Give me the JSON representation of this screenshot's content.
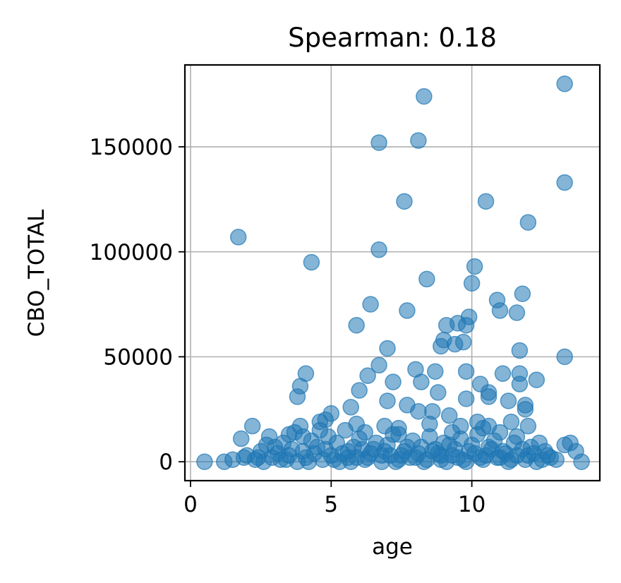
{
  "chart_data": {
    "type": "scatter",
    "title": "Spearman: 0.18",
    "xlabel": "age",
    "ylabel": "CBO_TOTAL",
    "xlim": [
      -0.2,
      14.55
    ],
    "ylim": [
      -9000,
      189000
    ],
    "xticks": [
      0,
      5,
      10
    ],
    "yticks": [
      0,
      50000,
      100000,
      150000
    ],
    "grid": true,
    "marker_color": "#1f77b4",
    "marker_alpha": 0.55,
    "points": [
      [
        13.3,
        180000
      ],
      [
        8.3,
        174000
      ],
      [
        8.1,
        153000
      ],
      [
        6.7,
        152000
      ],
      [
        13.3,
        133000
      ],
      [
        7.6,
        124000
      ],
      [
        10.5,
        124000
      ],
      [
        12.0,
        114000
      ],
      [
        1.7,
        107000
      ],
      [
        6.7,
        101000
      ],
      [
        4.3,
        95000
      ],
      [
        10.1,
        93000
      ],
      [
        8.4,
        87000
      ],
      [
        10.0,
        85000
      ],
      [
        11.8,
        80000
      ],
      [
        10.9,
        77000
      ],
      [
        6.4,
        75000
      ],
      [
        11.0,
        72000
      ],
      [
        7.7,
        72000
      ],
      [
        11.6,
        71000
      ],
      [
        9.9,
        69000
      ],
      [
        9.5,
        66000
      ],
      [
        5.9,
        65000
      ],
      [
        9.1,
        65000
      ],
      [
        9.8,
        65000
      ],
      [
        9.0,
        58000
      ],
      [
        9.7,
        57000
      ],
      [
        9.4,
        56000
      ],
      [
        8.9,
        55000
      ],
      [
        7.0,
        54000
      ],
      [
        11.7,
        53000
      ],
      [
        13.3,
        50000
      ],
      [
        6.7,
        46000
      ],
      [
        8.0,
        44000
      ],
      [
        9.8,
        43000
      ],
      [
        8.7,
        43000
      ],
      [
        11.7,
        42000
      ],
      [
        4.1,
        42000
      ],
      [
        6.3,
        41000
      ],
      [
        11.1,
        42000
      ],
      [
        10.3,
        37000
      ],
      [
        11.7,
        37000
      ],
      [
        7.2,
        38000
      ],
      [
        8.2,
        38000
      ],
      [
        12.3,
        39000
      ],
      [
        3.9,
        36000
      ],
      [
        3.8,
        31000
      ],
      [
        6.0,
        34000
      ],
      [
        8.8,
        33000
      ],
      [
        10.6,
        31000
      ],
      [
        11.3,
        29000
      ],
      [
        10.6,
        33000
      ],
      [
        7.0,
        29000
      ],
      [
        9.8,
        30000
      ],
      [
        7.7,
        27000
      ],
      [
        11.9,
        27000
      ],
      [
        8.6,
        24000
      ],
      [
        9.2,
        22000
      ],
      [
        5.0,
        23000
      ],
      [
        11.9,
        25000
      ],
      [
        4.6,
        19000
      ],
      [
        2.2,
        17000
      ],
      [
        3.9,
        17000
      ],
      [
        4.8,
        20000
      ],
      [
        5.7,
        26000
      ],
      [
        8.1,
        24000
      ],
      [
        10.2,
        19000
      ],
      [
        12.0,
        17000
      ],
      [
        1.8,
        11000
      ],
      [
        3.5,
        13000
      ],
      [
        4.0,
        12000
      ],
      [
        2.8,
        12000
      ],
      [
        6.2,
        14000
      ],
      [
        7.4,
        13000
      ],
      [
        9.3,
        14000
      ],
      [
        10.6,
        17000
      ],
      [
        11.4,
        19000
      ],
      [
        12.4,
        9000
      ],
      [
        13.5,
        9000
      ],
      [
        13.3,
        8000
      ],
      [
        13.7,
        5000
      ],
      [
        0.5,
        0
      ],
      [
        1.2,
        0
      ],
      [
        1.5,
        1000
      ],
      [
        1.9,
        2000
      ],
      [
        2.3,
        1000
      ],
      [
        2.6,
        0
      ],
      [
        2.9,
        2000
      ],
      [
        3.2,
        1000
      ],
      [
        3.5,
        3000
      ],
      [
        3.8,
        0
      ],
      [
        4.1,
        2000
      ],
      [
        4.4,
        4000
      ],
      [
        4.7,
        1000
      ],
      [
        5.0,
        3000
      ],
      [
        5.3,
        0
      ],
      [
        5.6,
        5000
      ],
      [
        5.9,
        2000
      ],
      [
        6.2,
        1000
      ],
      [
        6.5,
        6000
      ],
      [
        6.8,
        0
      ],
      [
        7.1,
        3000
      ],
      [
        7.4,
        1000
      ],
      [
        7.7,
        7000
      ],
      [
        8.0,
        2000
      ],
      [
        8.3,
        0
      ],
      [
        8.6,
        5000
      ],
      [
        8.9,
        1000
      ],
      [
        9.2,
        8000
      ],
      [
        9.5,
        2000
      ],
      [
        9.8,
        0
      ],
      [
        10.1,
        4000
      ],
      [
        10.4,
        1000
      ],
      [
        10.7,
        6000
      ],
      [
        11.0,
        2000
      ],
      [
        11.3,
        0
      ],
      [
        11.6,
        3000
      ],
      [
        11.9,
        1000
      ],
      [
        12.2,
        4000
      ],
      [
        12.5,
        1000
      ],
      [
        12.8,
        2000
      ],
      [
        13.9,
        0
      ],
      [
        2.5,
        5000
      ],
      [
        3.0,
        7000
      ],
      [
        3.3,
        9000
      ],
      [
        4.3,
        10000
      ],
      [
        4.9,
        12000
      ],
      [
        5.5,
        15000
      ],
      [
        6.0,
        11000
      ],
      [
        6.6,
        9000
      ],
      [
        7.2,
        13000
      ],
      [
        7.9,
        10000
      ],
      [
        8.5,
        12000
      ],
      [
        9.0,
        9000
      ],
      [
        9.6,
        11000
      ],
      [
        10.2,
        13000
      ],
      [
        10.8,
        10000
      ],
      [
        11.5,
        9000
      ],
      [
        12.1,
        7000
      ],
      [
        12.7,
        3000
      ],
      [
        2.0,
        3000
      ],
      [
        2.7,
        8000
      ],
      [
        3.6,
        6000
      ],
      [
        4.5,
        7000
      ],
      [
        5.2,
        9000
      ],
      [
        5.8,
        7000
      ],
      [
        6.4,
        4000
      ],
      [
        7.0,
        8000
      ],
      [
        7.6,
        5000
      ],
      [
        8.2,
        7000
      ],
      [
        8.8,
        4000
      ],
      [
        9.4,
        6000
      ],
      [
        10.0,
        8000
      ],
      [
        10.5,
        3000
      ],
      [
        11.1,
        5000
      ],
      [
        11.8,
        6000
      ],
      [
        12.6,
        5000
      ],
      [
        3.1,
        4000
      ],
      [
        4.0,
        5000
      ],
      [
        4.8,
        6000
      ],
      [
        5.4,
        4000
      ],
      [
        6.1,
        6000
      ],
      [
        6.9,
        5000
      ],
      [
        7.5,
        3000
      ],
      [
        8.1,
        4000
      ],
      [
        8.7,
        6000
      ],
      [
        9.3,
        3000
      ],
      [
        9.9,
        5000
      ],
      [
        10.6,
        7000
      ],
      [
        11.2,
        4000
      ],
      [
        12.0,
        3000
      ],
      [
        2.4,
        2000
      ],
      [
        3.4,
        1000
      ],
      [
        4.2,
        0
      ],
      [
        5.1,
        1000
      ],
      [
        5.7,
        0
      ],
      [
        6.3,
        2000
      ],
      [
        7.3,
        0
      ],
      [
        8.4,
        1000
      ],
      [
        9.1,
        0
      ],
      [
        10.3,
        2000
      ],
      [
        11.4,
        1000
      ],
      [
        12.3,
        0
      ],
      [
        13.0,
        1000
      ],
      [
        6.8,
        3000
      ],
      [
        7.8,
        2000
      ],
      [
        8.9,
        3000
      ],
      [
        9.7,
        1000
      ],
      [
        10.9,
        2000
      ],
      [
        5.6,
        2000
      ],
      [
        3.7,
        14000
      ],
      [
        4.6,
        15000
      ],
      [
        5.9,
        18000
      ],
      [
        6.9,
        17000
      ],
      [
        7.4,
        16000
      ],
      [
        8.5,
        18000
      ],
      [
        9.6,
        17000
      ],
      [
        10.4,
        16000
      ],
      [
        11.0,
        14000
      ],
      [
        11.6,
        12000
      ]
    ]
  }
}
